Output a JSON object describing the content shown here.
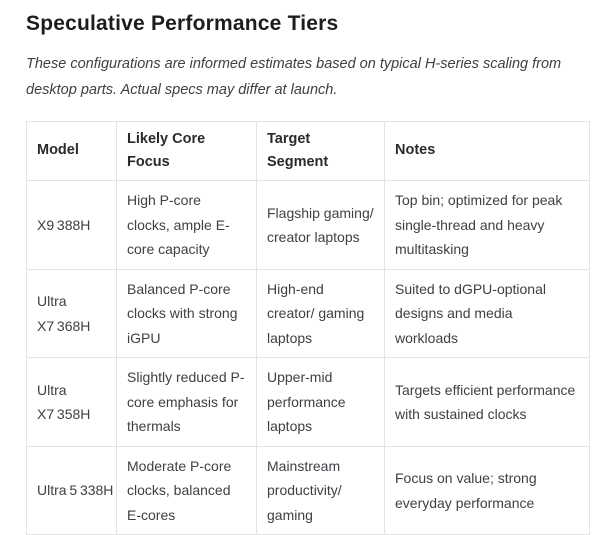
{
  "page": {
    "title": "Speculative Performance Tiers",
    "disclaimer": "These configurations are informed estimates based on typical H-series scaling from desktop parts. Actual specs may differ at launch."
  },
  "table": {
    "columns": [
      "Model",
      "Likely Core Focus",
      "Target Segment",
      "Notes"
    ],
    "rows": [
      {
        "model": "X9 388H",
        "core_focus": "High P-core clocks, ample E-core capacity",
        "target_segment": "Flagship gaming/ creator laptops",
        "notes": "Top bin; optimized for peak single-thread and heavy multitasking"
      },
      {
        "model": "Ultra X7 368H",
        "core_focus": "Balanced P-core clocks with strong iGPU",
        "target_segment": "High-end creator/ gaming laptops",
        "notes": "Suited to dGPU-optional designs and media workloads"
      },
      {
        "model": "Ultra X7 358H",
        "core_focus": "Slightly reduced P-core emphasis for thermals",
        "target_segment": "Upper-mid performance laptops",
        "notes": "Targets efficient performance with sustained clocks"
      },
      {
        "model": "Ultra 5 338H",
        "core_focus": "Moderate P-core clocks, balanced E-cores",
        "target_segment": "Mainstream productivity/ gaming",
        "notes": "Focus on value; strong everyday performance"
      }
    ]
  },
  "colors": {
    "background": "#ffffff",
    "text": "#3f4045",
    "heading": "#1d1d20",
    "border": "#e4e4e7"
  }
}
